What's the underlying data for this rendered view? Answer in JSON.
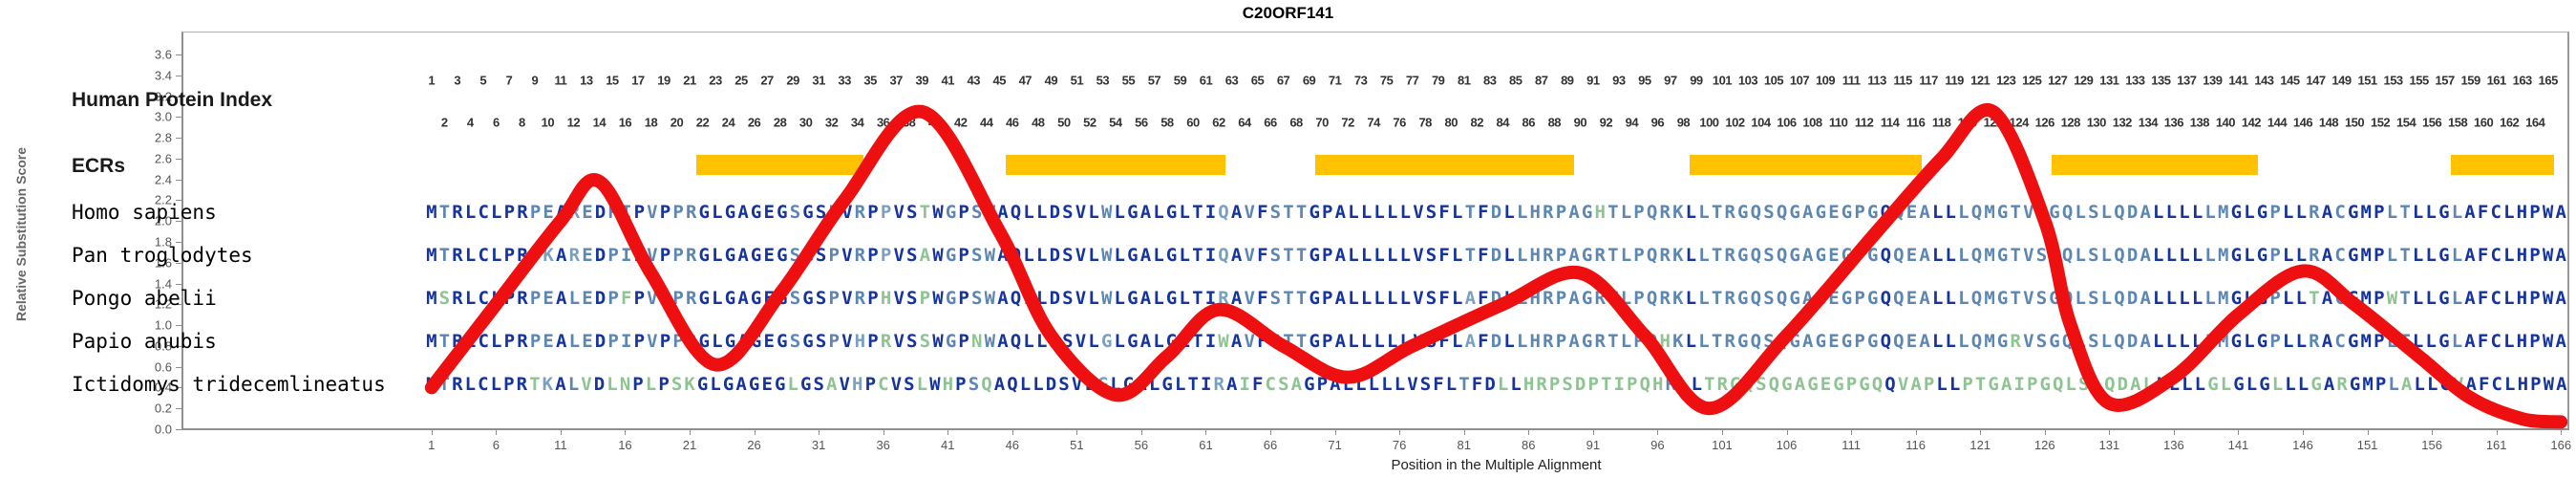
{
  "title": "C20ORF141",
  "y_axis": {
    "label": "Relative Substitution Score",
    "ticks": [
      "0.0",
      "0.2",
      "0.4",
      "0.6",
      "0.8",
      "1.0",
      "1.2",
      "1.4",
      "1.6",
      "1.8",
      "2.0",
      "2.2",
      "2.4",
      "2.6",
      "2.8",
      "3.0",
      "3.2",
      "3.4",
      "3.6"
    ]
  },
  "x_axis": {
    "label": "Position in the Multiple Alignment",
    "ticks": [
      1,
      6,
      11,
      16,
      21,
      26,
      31,
      36,
      41,
      46,
      51,
      56,
      61,
      66,
      71,
      76,
      81,
      86,
      91,
      96,
      101,
      106,
      111,
      116,
      121,
      126,
      131,
      136,
      141,
      146,
      151,
      156,
      161,
      166
    ]
  },
  "index_row": {
    "label": "Human Protein Index",
    "odd": [
      1,
      3,
      5,
      7,
      9,
      11,
      13,
      15,
      17,
      19,
      21,
      23,
      25,
      27,
      29,
      31,
      33,
      35,
      37,
      39,
      41,
      43,
      45,
      47,
      49,
      51,
      53,
      55,
      57,
      59,
      61,
      63,
      65,
      67,
      69,
      71,
      73,
      75,
      77,
      79,
      81,
      83,
      85,
      87,
      89,
      91,
      93,
      95,
      97,
      99,
      101,
      103,
      105,
      107,
      109,
      111,
      113,
      115,
      117,
      119,
      121,
      123,
      125,
      127,
      129,
      131,
      133,
      135,
      137,
      139,
      141,
      143,
      145,
      147,
      149,
      151,
      153,
      155,
      157,
      159,
      161,
      163,
      165
    ],
    "even": [
      2,
      4,
      6,
      8,
      10,
      12,
      14,
      16,
      18,
      20,
      22,
      24,
      26,
      28,
      30,
      32,
      34,
      36,
      38,
      40,
      42,
      44,
      46,
      48,
      50,
      52,
      54,
      56,
      58,
      60,
      62,
      64,
      66,
      68,
      70,
      72,
      74,
      76,
      78,
      80,
      82,
      84,
      86,
      88,
      90,
      92,
      94,
      96,
      98,
      100,
      102,
      104,
      106,
      108,
      110,
      112,
      114,
      116,
      118,
      120,
      122,
      124,
      126,
      128,
      130,
      132,
      134,
      136,
      138,
      140,
      142,
      144,
      146,
      148,
      150,
      152,
      154,
      156,
      158,
      160,
      162,
      164
    ]
  },
  "ecr_row": {
    "label": "ECRs",
    "regions": [
      [
        22,
        34
      ],
      [
        46,
        62
      ],
      [
        70,
        89
      ],
      [
        99,
        116
      ],
      [
        127,
        142
      ],
      [
        158,
        165
      ]
    ]
  },
  "species": [
    {
      "name": "Homo sapiens",
      "sequence": "MTRLCLPRPEAREDPIPVPPRGLGAGEGSGSPVRPPVSTWGPSWAQLLDSVLWLGALGLTIQAVFSTTGPALLLLLVSFLTFDLLHRPAGHTLPQRKLLTRGQSQGAGEGPGQQEALLLQMGTVSGQLSLQDALLLLLMGLGPLLRACGMPLTLLGLAFCLHPWA"
    },
    {
      "name": "Pan troglodytes",
      "sequence": "MTRLCLPRPKAREDPIPVPPRGLGAGEGSGSPVRPPVSAWGPSWAQLLDSVLWLGALGLTIQAVFSTTGPALLLLLVSFLTFDLLHRPAGRTLPQRKLLTRGQSQGAGEGPGQQEALLLQMGTVSGQLSLQDALLLLLMGLGPLLRACGMPLTLLGLAFCLHPWA"
    },
    {
      "name": "Pongo abelii",
      "sequence": "MSRLCLPRPEALEDPFPVPPRGLGAGEGSGSPVRPHVSPWGPSWAQLLDSVLWLGALGLTIRAVFSTTGPALLLLLVSFLAFDLLHRPAGRTLPQRKLLTRGQSQGAGEGPGQQEALLLQMGTVSGQLSLQDALLLLLMGLGPLLTACGMPWTLLGLAFCLHPWA"
    },
    {
      "name": "Papio anubis",
      "sequence": "MTRLCLPRPEALEDPIPVPPRGLGAGEGSGSPVHPRVSSWGPNWAQLLDSVLGLGALGLTIWAVFSTTGPALLLLLVSFLAFDLLHRPAGRTLPQHKLLTRGQSQGAGEGPGQQEALLLQMGRVSGQLSLQDALLLLLMGLGPLLRACGMPLTLLGLAFCLHPWA"
    },
    {
      "name": "Ictidomys tridecemlineatus",
      "sequence": "MTRLCLPRTKALVDLNPLPSKGLGAGEGLGSAVHPCVSLWHPSQAQLLDSVLGLGALGLTIRAIFCSAGPALLLLLVSFLTFDLLHRPSDPTIPQHRLLTRGQSQGAGEGPGQQVAPLLPTGAIPGQLSLQDALLLLLGLGLGLLLGARGMPLALLGVAFCLHPWA"
    }
  ],
  "chart_data": {
    "type": "line",
    "title": "C20ORF141",
    "xlabel": "Position in the Multiple Alignment",
    "ylabel": "Relative Substitution Score",
    "xlim": [
      1,
      166
    ],
    "ylim": [
      0,
      3.6
    ],
    "grid": false,
    "legend": "none",
    "series": [
      {
        "name": "relative substitution score",
        "color": "#ee1010",
        "x": [
          1,
          6,
          11,
          14,
          18,
          23,
          28,
          33,
          39,
          45,
          49,
          54,
          58,
          62,
          67,
          72,
          77,
          84,
          90,
          95,
          100,
          106,
          113,
          118,
          122,
          126,
          128,
          131,
          136,
          141,
          146,
          150,
          155,
          159,
          163,
          166
        ],
        "y": [
          0.4,
          1.2,
          2.0,
          2.38,
          1.5,
          0.62,
          1.3,
          2.2,
          3.05,
          1.9,
          0.9,
          0.33,
          0.7,
          1.15,
          0.8,
          0.5,
          0.8,
          1.2,
          1.5,
          0.9,
          0.2,
          0.9,
          1.9,
          2.6,
          3.05,
          2.0,
          1.0,
          0.25,
          0.5,
          1.1,
          1.52,
          1.2,
          0.7,
          0.3,
          0.1,
          0.07
        ]
      }
    ],
    "annotations": {
      "ecr_regions_positions": [
        [
          22,
          34
        ],
        [
          46,
          62
        ],
        [
          70,
          89
        ],
        [
          99,
          116
        ],
        [
          127,
          142
        ],
        [
          158,
          165
        ]
      ],
      "alignment_length": 166
    }
  },
  "colors": {
    "curve": "#ee1010",
    "ecr_bar": "#ffc200",
    "seq_conserved": "#16349c",
    "seq_majority": "#5d87b2",
    "seq_pair": "#7aa0c0",
    "seq_unique": "#8ec492",
    "axis": "#8f8f8f",
    "tick_text": "#555555",
    "index_text": "#333333"
  }
}
